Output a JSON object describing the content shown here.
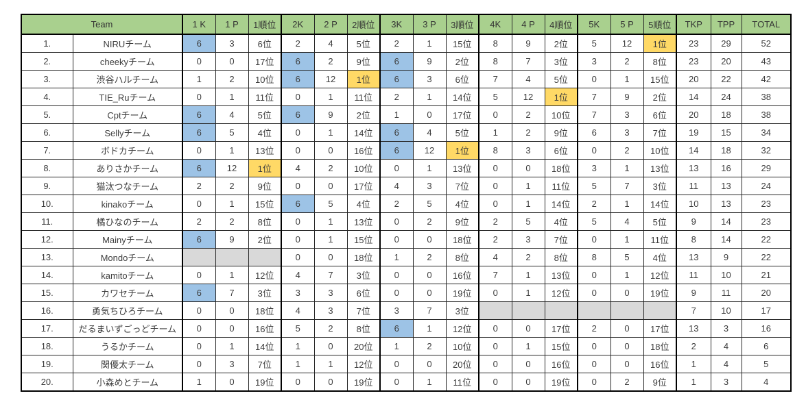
{
  "colors": {
    "header_bg": "#a9d08e",
    "highlight_blue": "#9dc3e6",
    "highlight_gold": "#ffd966",
    "empty_gray": "#d9d9d9",
    "grid_line": "#262626",
    "text": "#3d3d3d"
  },
  "table": {
    "header": {
      "team_label": "Team",
      "columns": [
        "1 K",
        "1 P",
        "1順位",
        "2K",
        "2 P",
        "2順位",
        "3K",
        "3 P",
        "3順位",
        "4K",
        "4 P",
        "4順位",
        "5K",
        "5 P",
        "5順位",
        "TKP",
        "TPP",
        "TOTAL"
      ]
    },
    "rows": [
      {
        "rank": "1.",
        "team": "NIRUチーム",
        "cells": [
          "6",
          "3",
          "6位",
          "2",
          "4",
          "5位",
          "2",
          "1",
          "15位",
          "8",
          "9",
          "2位",
          "5",
          "12",
          "1位",
          "23",
          "29",
          "52"
        ],
        "blue": [
          0
        ],
        "orange": [
          14
        ],
        "gray": []
      },
      {
        "rank": "2.",
        "team": "cheekyチーム",
        "cells": [
          "0",
          "0",
          "17位",
          "6",
          "2",
          "9位",
          "6",
          "9",
          "2位",
          "8",
          "7",
          "3位",
          "3",
          "2",
          "8位",
          "23",
          "20",
          "43"
        ],
        "blue": [
          3,
          6
        ],
        "orange": [],
        "gray": []
      },
      {
        "rank": "3.",
        "team": "渋谷ハルチーム",
        "cells": [
          "1",
          "2",
          "10位",
          "6",
          "12",
          "1位",
          "6",
          "3",
          "6位",
          "7",
          "4",
          "5位",
          "0",
          "1",
          "15位",
          "20",
          "22",
          "42"
        ],
        "blue": [
          3,
          6
        ],
        "orange": [
          5
        ],
        "gray": []
      },
      {
        "rank": "4.",
        "team": "TIE_Ruチーム",
        "cells": [
          "0",
          "1",
          "11位",
          "0",
          "1",
          "11位",
          "2",
          "1",
          "14位",
          "5",
          "12",
          "1位",
          "7",
          "9",
          "2位",
          "14",
          "24",
          "38"
        ],
        "blue": [],
        "orange": [
          11
        ],
        "gray": []
      },
      {
        "rank": "5.",
        "team": "Cptチーム",
        "cells": [
          "6",
          "4",
          "5位",
          "6",
          "9",
          "2位",
          "1",
          "0",
          "17位",
          "0",
          "2",
          "10位",
          "7",
          "3",
          "6位",
          "20",
          "18",
          "38"
        ],
        "blue": [
          0,
          3
        ],
        "orange": [],
        "gray": []
      },
      {
        "rank": "6.",
        "team": "Sellyチーム",
        "cells": [
          "6",
          "5",
          "4位",
          "0",
          "1",
          "14位",
          "6",
          "4",
          "5位",
          "1",
          "2",
          "9位",
          "6",
          "3",
          "7位",
          "19",
          "15",
          "34"
        ],
        "blue": [
          0,
          6
        ],
        "orange": [],
        "gray": []
      },
      {
        "rank": "7.",
        "team": "ボドカチーム",
        "cells": [
          "0",
          "1",
          "13位",
          "0",
          "0",
          "16位",
          "6",
          "12",
          "1位",
          "8",
          "3",
          "6位",
          "0",
          "2",
          "10位",
          "14",
          "18",
          "32"
        ],
        "blue": [
          6
        ],
        "orange": [
          8
        ],
        "gray": []
      },
      {
        "rank": "8.",
        "team": "ありさかチーム",
        "cells": [
          "6",
          "12",
          "1位",
          "4",
          "2",
          "10位",
          "0",
          "1",
          "13位",
          "0",
          "0",
          "18位",
          "3",
          "1",
          "13位",
          "13",
          "16",
          "29"
        ],
        "blue": [
          0
        ],
        "orange": [
          2
        ],
        "gray": []
      },
      {
        "rank": "9.",
        "team": "猫汰つなチーム",
        "cells": [
          "2",
          "2",
          "9位",
          "0",
          "0",
          "17位",
          "4",
          "3",
          "7位",
          "0",
          "1",
          "11位",
          "5",
          "7",
          "3位",
          "11",
          "13",
          "24"
        ],
        "blue": [],
        "orange": [],
        "gray": []
      },
      {
        "rank": "10.",
        "team": "kinakoチーム",
        "cells": [
          "0",
          "1",
          "15位",
          "6",
          "5",
          "4位",
          "2",
          "5",
          "4位",
          "0",
          "1",
          "14位",
          "2",
          "1",
          "14位",
          "10",
          "13",
          "23"
        ],
        "blue": [
          3
        ],
        "orange": [],
        "gray": []
      },
      {
        "rank": "11.",
        "team": "橘ひなのチーム",
        "cells": [
          "2",
          "2",
          "8位",
          "0",
          "1",
          "13位",
          "0",
          "2",
          "9位",
          "2",
          "5",
          "4位",
          "5",
          "4",
          "5位",
          "9",
          "14",
          "23"
        ],
        "blue": [],
        "orange": [],
        "gray": []
      },
      {
        "rank": "12.",
        "team": "Mainyチーム",
        "cells": [
          "6",
          "9",
          "2位",
          "0",
          "1",
          "15位",
          "0",
          "0",
          "18位",
          "2",
          "3",
          "7位",
          "0",
          "1",
          "11位",
          "8",
          "14",
          "22"
        ],
        "blue": [
          0
        ],
        "orange": [],
        "gray": []
      },
      {
        "rank": "13.",
        "team": "Mondoチーム",
        "cells": [
          "",
          "",
          "",
          "0",
          "0",
          "18位",
          "1",
          "2",
          "8位",
          "4",
          "2",
          "8位",
          "8",
          "5",
          "4位",
          "13",
          "9",
          "22"
        ],
        "blue": [],
        "orange": [],
        "gray": [
          0,
          1,
          2
        ]
      },
      {
        "rank": "14.",
        "team": "kamitoチーム",
        "cells": [
          "0",
          "1",
          "12位",
          "4",
          "7",
          "3位",
          "0",
          "0",
          "16位",
          "7",
          "1",
          "13位",
          "0",
          "1",
          "12位",
          "11",
          "10",
          "21"
        ],
        "blue": [],
        "orange": [],
        "gray": []
      },
      {
        "rank": "15.",
        "team": "カワセチーム",
        "cells": [
          "6",
          "7",
          "3位",
          "3",
          "3",
          "6位",
          "0",
          "0",
          "19位",
          "0",
          "1",
          "12位",
          "0",
          "0",
          "19位",
          "9",
          "11",
          "20"
        ],
        "blue": [
          0
        ],
        "orange": [],
        "gray": []
      },
      {
        "rank": "16.",
        "team": "勇気ちひろチーム",
        "cells": [
          "0",
          "0",
          "18位",
          "4",
          "3",
          "7位",
          "3",
          "7",
          "3位",
          "",
          "",
          "",
          "",
          "",
          "",
          "7",
          "10",
          "17"
        ],
        "blue": [],
        "orange": [],
        "gray": [
          9,
          10,
          11,
          12,
          13,
          14
        ]
      },
      {
        "rank": "17.",
        "team": "だるまいずごっどチーム",
        "cells": [
          "0",
          "0",
          "16位",
          "5",
          "2",
          "8位",
          "6",
          "1",
          "12位",
          "0",
          "0",
          "17位",
          "2",
          "0",
          "17位",
          "13",
          "3",
          "16"
        ],
        "blue": [
          6
        ],
        "orange": [],
        "gray": []
      },
      {
        "rank": "18.",
        "team": "うるかチーム",
        "cells": [
          "0",
          "1",
          "14位",
          "1",
          "0",
          "20位",
          "1",
          "2",
          "10位",
          "0",
          "1",
          "15位",
          "0",
          "0",
          "18位",
          "2",
          "4",
          "6"
        ],
        "blue": [],
        "orange": [],
        "gray": []
      },
      {
        "rank": "19.",
        "team": "関優太チーム",
        "cells": [
          "0",
          "3",
          "7位",
          "1",
          "1",
          "12位",
          "0",
          "0",
          "20位",
          "0",
          "0",
          "16位",
          "0",
          "0",
          "16位",
          "1",
          "4",
          "5"
        ],
        "blue": [],
        "orange": [],
        "gray": []
      },
      {
        "rank": "20.",
        "team": "小森めとチーム",
        "cells": [
          "1",
          "0",
          "19位",
          "0",
          "0",
          "19位",
          "0",
          "1",
          "11位",
          "0",
          "0",
          "19位",
          "0",
          "2",
          "9位",
          "1",
          "3",
          "4"
        ],
        "blue": [],
        "orange": [],
        "gray": []
      }
    ]
  }
}
